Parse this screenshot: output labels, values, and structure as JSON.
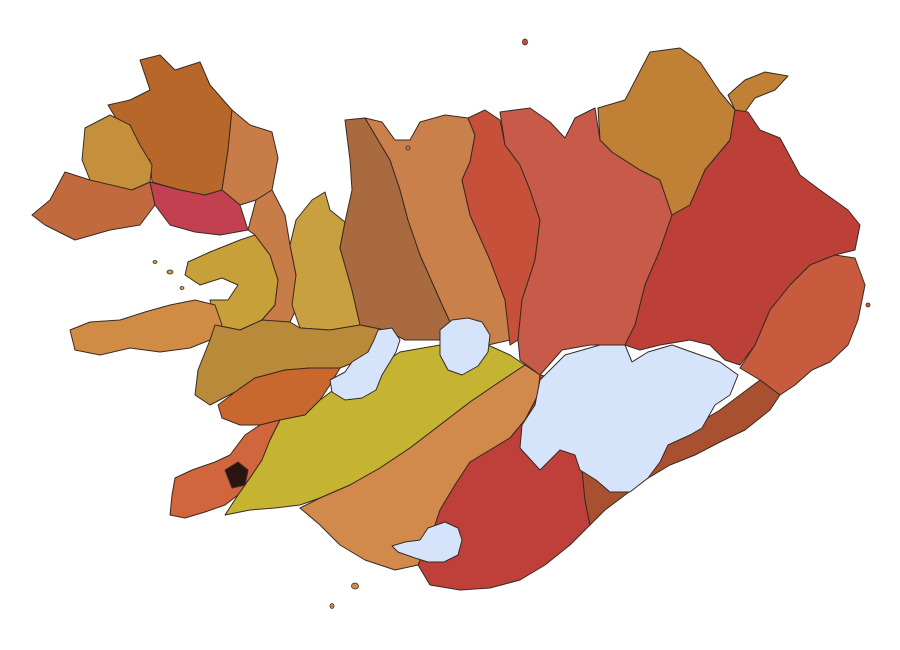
{
  "map": {
    "subject": "Iceland",
    "legend": [],
    "colors": {
      "background": "#ffffff",
      "outline": "#3a2a22",
      "glacier": "#d6e4fb",
      "westfjords_north": "#b8672a",
      "westfjords_east": "#c87c47",
      "westfjords_west": "#c5903b",
      "westfjords_southwest": "#c06a3e",
      "westfjords_band": "#c2404f",
      "westfjords_south": "#c8a03a",
      "northwest_1": "#c8a040",
      "northwest_2": "#a86a3e",
      "northwest_3": "#c9804a",
      "north_1": "#c6503a",
      "north_2": "#c85a4a",
      "northeast": "#c08035",
      "east": "#bd4038",
      "east_coast": "#c85b3e",
      "west_snaefellsnes": "#d08c45",
      "west_central": "#b88a3a",
      "west_borgarfjordur": "#c8682f",
      "reykjanes": "#d0653e",
      "reykjavik": "#2a1412",
      "south_central": "#c4b432",
      "south": "#d28a4c",
      "south_east": "#bf403a",
      "southeast_coast": "#a85030"
    }
  }
}
